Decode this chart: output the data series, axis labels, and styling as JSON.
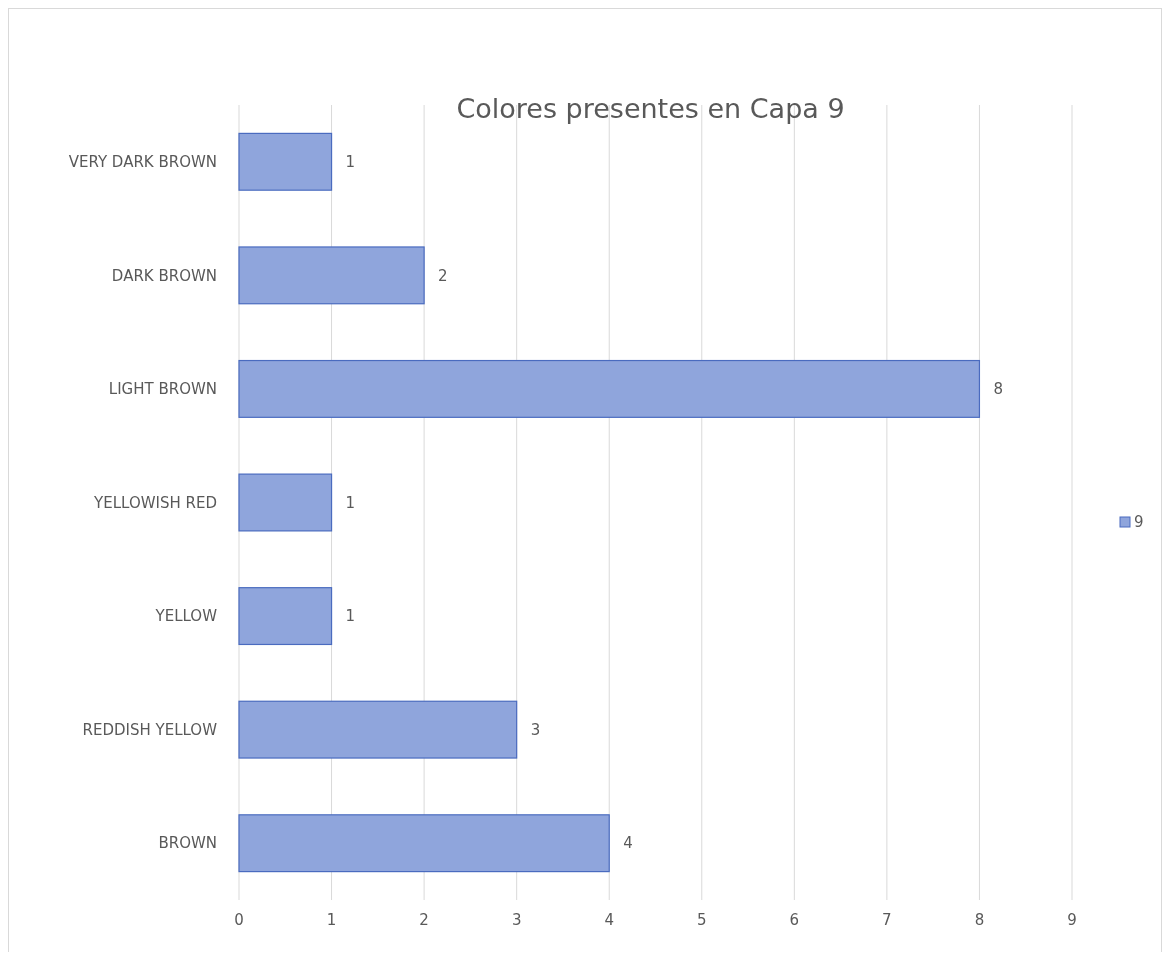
{
  "chart_data": {
    "type": "bar",
    "orientation": "horizontal",
    "title": "Colores presentes en Capa 9",
    "categories": [
      "VERY DARK BROWN",
      "DARK BROWN",
      "LIGHT BROWN",
      "YELLOWISH RED",
      "YELLOW",
      "REDDISH YELLOW",
      "BROWN"
    ],
    "series": [
      {
        "name": "9",
        "color": "#8fa5dc",
        "values": [
          1,
          2,
          8,
          1,
          1,
          3,
          4
        ]
      }
    ],
    "xlim": [
      0,
      9
    ],
    "xticks": [
      0,
      1,
      2,
      3,
      4,
      5,
      6,
      7,
      8,
      9
    ],
    "grid": "x",
    "legend": "right",
    "data_labels": true
  }
}
